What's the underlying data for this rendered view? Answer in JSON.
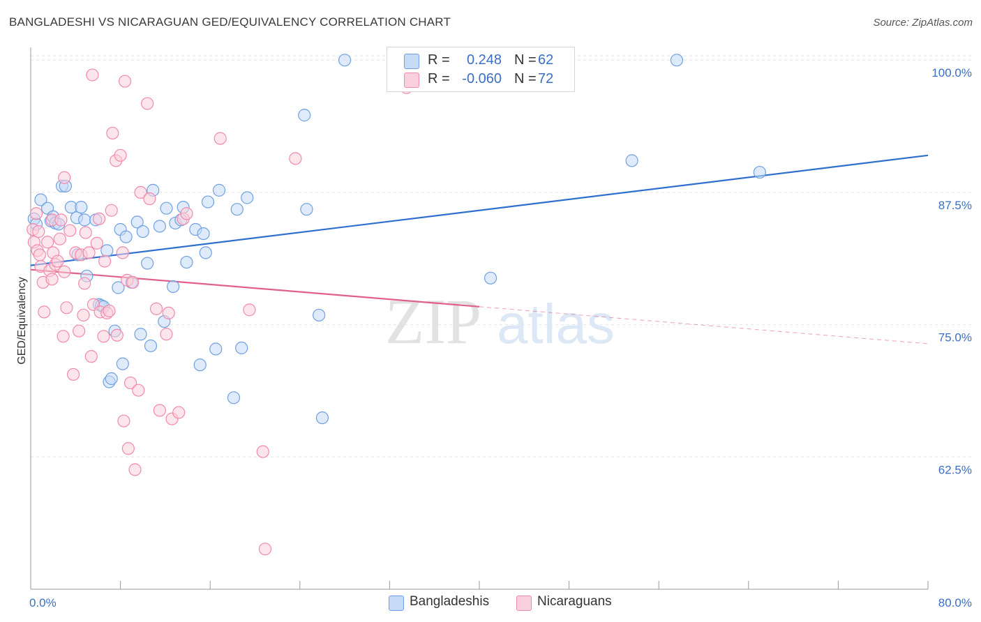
{
  "title": "BANGLADESHI VS NICARAGUAN GED/EQUIVALENCY CORRELATION CHART",
  "source": "Source: ZipAtlas.com",
  "watermark": {
    "zip": "ZIP",
    "atlas": "atlas"
  },
  "legend_top": [
    {
      "r_label": "R =",
      "r_value": "0.248",
      "n_label": "N =",
      "n_value": "62",
      "color": "#6fa0e0"
    },
    {
      "r_label": "R =",
      "r_value": "-0.060",
      "n_label": "N =",
      "n_value": "72",
      "color": "#f08aab"
    }
  ],
  "legend_bottom": [
    {
      "label": "Bangladeshis",
      "color": "#6fa0e0"
    },
    {
      "label": "Nicaraguans",
      "color": "#f08aab"
    }
  ],
  "chart_data": {
    "type": "scatter",
    "title": "BANGLADESHI VS NICARAGUAN GED/EQUIVALENCY CORRELATION CHART",
    "xlabel": "",
    "ylabel": "GED/Equivalency",
    "xlim": [
      0,
      80
    ],
    "ylim": [
      50,
      101.2
    ],
    "x_tick_labels": [
      {
        "value": 0,
        "label": "0.0%"
      },
      {
        "value": 80,
        "label": "80.0%"
      }
    ],
    "y_tick_labels": [
      {
        "value": 100,
        "label": "100.0%"
      },
      {
        "value": 87.5,
        "label": "87.5%"
      },
      {
        "value": 75,
        "label": "75.0%"
      },
      {
        "value": 62.5,
        "label": "62.5%"
      }
    ],
    "x_minor_ticks": [
      0,
      8,
      16,
      24,
      32,
      40,
      48,
      56,
      64,
      72,
      80
    ],
    "grid": true,
    "series": [
      {
        "name": "Bangladeshis",
        "color": "#6fa0e0",
        "trend": {
          "x0": 0,
          "y0": 80.6,
          "x1": 80,
          "y1": 91.0,
          "dashed_from": null
        },
        "points": [
          [
            0.3,
            85.0
          ],
          [
            0.5,
            84.5
          ],
          [
            0.9,
            86.8
          ],
          [
            1.5,
            86.0
          ],
          [
            1.8,
            84.8
          ],
          [
            2.0,
            85.2
          ],
          [
            2.2,
            84.6
          ],
          [
            2.5,
            84.5
          ],
          [
            2.8,
            88.1
          ],
          [
            3.1,
            88.1
          ],
          [
            3.6,
            86.1
          ],
          [
            4.2,
            81.6
          ],
          [
            4.1,
            85.1
          ],
          [
            4.5,
            86.1
          ],
          [
            4.8,
            84.9
          ],
          [
            5.0,
            79.6
          ],
          [
            5.8,
            84.9
          ],
          [
            6.1,
            76.9
          ],
          [
            6.3,
            76.8
          ],
          [
            6.5,
            76.7
          ],
          [
            6.8,
            82.0
          ],
          [
            7.0,
            69.6
          ],
          [
            7.2,
            69.9
          ],
          [
            7.5,
            74.4
          ],
          [
            7.8,
            78.5
          ],
          [
            8.0,
            84.0
          ],
          [
            8.2,
            71.3
          ],
          [
            8.5,
            83.3
          ],
          [
            9.0,
            79.0
          ],
          [
            9.5,
            84.7
          ],
          [
            9.8,
            74.1
          ],
          [
            10.0,
            83.8
          ],
          [
            10.4,
            80.8
          ],
          [
            10.7,
            73.0
          ],
          [
            10.9,
            87.7
          ],
          [
            11.5,
            84.3
          ],
          [
            11.9,
            75.3
          ],
          [
            12.1,
            86.0
          ],
          [
            12.7,
            78.6
          ],
          [
            12.9,
            84.6
          ],
          [
            13.4,
            84.9
          ],
          [
            13.6,
            86.1
          ],
          [
            13.9,
            80.9
          ],
          [
            14.7,
            84.0
          ],
          [
            15.1,
            71.2
          ],
          [
            15.4,
            83.6
          ],
          [
            15.6,
            81.8
          ],
          [
            15.8,
            86.6
          ],
          [
            16.5,
            72.7
          ],
          [
            16.8,
            87.7
          ],
          [
            18.1,
            68.1
          ],
          [
            18.4,
            85.9
          ],
          [
            18.8,
            72.8
          ],
          [
            19.3,
            87.0
          ],
          [
            24.6,
            85.9
          ],
          [
            24.4,
            94.8
          ],
          [
            25.7,
            75.9
          ],
          [
            26.0,
            66.2
          ],
          [
            28.0,
            100.0
          ],
          [
            41.0,
            79.4
          ],
          [
            53.6,
            90.5
          ],
          [
            57.6,
            100.0
          ],
          [
            65.0,
            89.4
          ]
        ]
      },
      {
        "name": "Nicaraguans",
        "color": "#f08aab",
        "trend": {
          "x0": 0,
          "y0": 80.2,
          "x1": 80,
          "y1": 73.2,
          "dashed_from": 40
        },
        "points": [
          [
            0.2,
            84.0
          ],
          [
            0.3,
            82.8
          ],
          [
            0.5,
            85.5
          ],
          [
            0.6,
            82.0
          ],
          [
            0.8,
            81.6
          ],
          [
            0.9,
            80.5
          ],
          [
            1.1,
            79.0
          ],
          [
            1.2,
            76.2
          ],
          [
            1.5,
            82.8
          ],
          [
            1.7,
            80.1
          ],
          [
            1.9,
            79.3
          ],
          [
            2.0,
            81.8
          ],
          [
            2.2,
            80.7
          ],
          [
            2.4,
            81.0
          ],
          [
            2.6,
            83.1
          ],
          [
            2.9,
            73.9
          ],
          [
            3.0,
            80.0
          ],
          [
            3.2,
            76.6
          ],
          [
            3.5,
            83.9
          ],
          [
            3.8,
            70.3
          ],
          [
            4.0,
            81.8
          ],
          [
            4.3,
            74.4
          ],
          [
            4.5,
            81.6
          ],
          [
            4.7,
            75.9
          ],
          [
            4.9,
            83.7
          ],
          [
            5.2,
            81.8
          ],
          [
            5.4,
            72.0
          ],
          [
            5.6,
            76.9
          ],
          [
            5.9,
            82.7
          ],
          [
            6.1,
            85.0
          ],
          [
            6.2,
            76.2
          ],
          [
            6.5,
            73.9
          ],
          [
            6.8,
            76.1
          ],
          [
            7.0,
            76.3
          ],
          [
            7.2,
            85.8
          ],
          [
            7.3,
            93.1
          ],
          [
            7.6,
            90.5
          ],
          [
            7.7,
            74.0
          ],
          [
            8.0,
            91.0
          ],
          [
            8.2,
            81.8
          ],
          [
            8.3,
            65.9
          ],
          [
            8.6,
            79.2
          ],
          [
            8.7,
            63.3
          ],
          [
            8.9,
            69.5
          ],
          [
            9.3,
            61.3
          ],
          [
            9.6,
            68.8
          ],
          [
            9.8,
            87.5
          ],
          [
            10.4,
            95.9
          ],
          [
            10.6,
            86.9
          ],
          [
            11.2,
            76.5
          ],
          [
            11.5,
            66.9
          ],
          [
            12.1,
            74.1
          ],
          [
            12.3,
            76.1
          ],
          [
            12.6,
            66.1
          ],
          [
            13.2,
            66.7
          ],
          [
            13.6,
            85.0
          ],
          [
            13.9,
            85.5
          ],
          [
            16.9,
            92.6
          ],
          [
            19.5,
            76.4
          ],
          [
            20.7,
            63.0
          ],
          [
            20.9,
            53.8
          ],
          [
            23.6,
            90.7
          ],
          [
            33.5,
            97.4
          ],
          [
            5.5,
            98.6
          ],
          [
            8.4,
            98.0
          ],
          [
            3.0,
            88.9
          ],
          [
            1.9,
            84.9
          ],
          [
            0.7,
            83.8
          ],
          [
            2.7,
            84.9
          ],
          [
            6.6,
            81.0
          ],
          [
            9.1,
            79.0
          ],
          [
            4.8,
            78.9
          ]
        ]
      }
    ]
  }
}
